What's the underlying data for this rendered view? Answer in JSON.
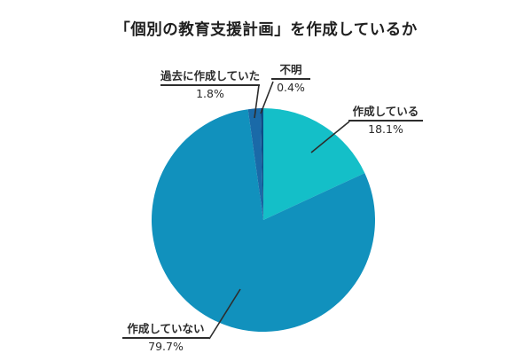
{
  "title": "「個別の教育支援計画」を作成しているか",
  "chart_data": {
    "type": "pie",
    "title": "「個別の教育支援計画」を作成しているか",
    "start_angle": "12-oclock",
    "direction": "clockwise",
    "legend_position": "none",
    "label_style": "callouts-with-leader-lines",
    "slices": [
      {
        "label": "作成している",
        "value": 18.1,
        "pct_label": "18.1%",
        "color": "#14BFC8"
      },
      {
        "label": "作成していない",
        "value": 79.7,
        "pct_label": "79.7%",
        "color": "#1191BD"
      },
      {
        "label": "過去に作成していた",
        "value": 1.8,
        "pct_label": "1.8%",
        "color": "#1A6AA8"
      },
      {
        "label": "不明",
        "value": 0.4,
        "pct_label": "0.4%",
        "color": "#0D4C86"
      }
    ]
  }
}
